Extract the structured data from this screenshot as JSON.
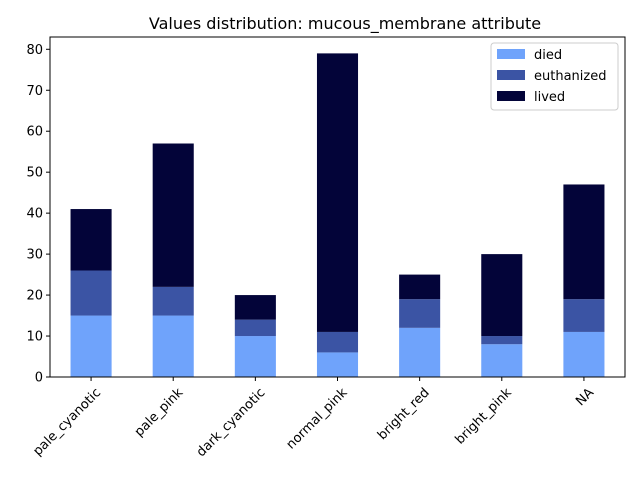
{
  "chart_data": {
    "type": "bar",
    "stacked": true,
    "title": "Values distribution: mucous_membrane attribute",
    "xlabel": "",
    "ylabel": "",
    "categories": [
      "pale_cyanotic",
      "pale_pink",
      "dark_cyanotic",
      "normal_pink",
      "bright_red",
      "bright_pink",
      "NA"
    ],
    "series": [
      {
        "name": "died",
        "color": "#6fa3fb",
        "values": [
          15,
          15,
          10,
          6,
          12,
          8,
          11
        ]
      },
      {
        "name": "euthanized",
        "color": "#3b54a4",
        "values": [
          11,
          7,
          4,
          5,
          7,
          2,
          8
        ]
      },
      {
        "name": "lived",
        "color": "#030439",
        "values": [
          15,
          35,
          6,
          68,
          6,
          20,
          28
        ]
      }
    ],
    "ylim": [
      0,
      83
    ],
    "yticks": [
      0,
      10,
      20,
      30,
      40,
      50,
      60,
      70,
      80
    ],
    "grid": false,
    "legend_position": "top-right"
  }
}
